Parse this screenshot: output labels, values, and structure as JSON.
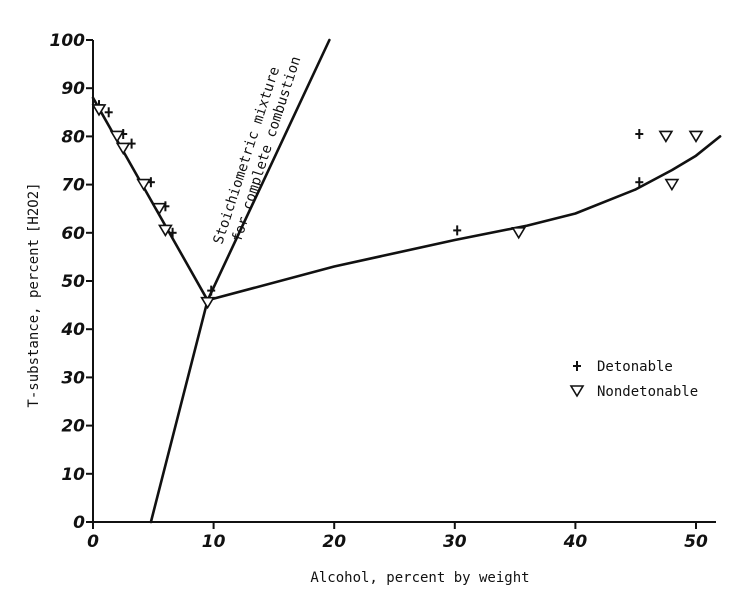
{
  "chart_data": {
    "type": "scatter",
    "xlabel": "Alcohol, percent by weight",
    "ylabel": "T-substance, percent",
    "ylabel_bracket": "H2O2",
    "xlim": [
      0,
      52
    ],
    "ylim": [
      0,
      100
    ],
    "x_ticks": [
      0,
      10,
      20,
      30,
      40,
      50
    ],
    "y_ticks": [
      0,
      10,
      20,
      30,
      40,
      50,
      60,
      70,
      80,
      90,
      100
    ],
    "annotation_line1": "Stoichiometric mixture",
    "annotation_line2": "for complete combustion",
    "legend": [
      {
        "label": "Detonable",
        "marker": "plus"
      },
      {
        "label": "Nondetonable",
        "marker": "triangle-down"
      }
    ],
    "series": [
      {
        "name": "Detonable",
        "marker": "plus",
        "points": [
          [
            0.5,
            86.5
          ],
          [
            1.3,
            85
          ],
          [
            2.5,
            80.5
          ],
          [
            3.2,
            78.5
          ],
          [
            4.8,
            70.5
          ],
          [
            6.0,
            65.5
          ],
          [
            6.6,
            60
          ],
          [
            9.8,
            48
          ],
          [
            30.2,
            60.5
          ],
          [
            45.3,
            80.5
          ],
          [
            45.3,
            70.5
          ]
        ]
      },
      {
        "name": "Nondetonable",
        "marker": "triangle-down",
        "points": [
          [
            0.5,
            85.5
          ],
          [
            2.0,
            80
          ],
          [
            2.5,
            77.5
          ],
          [
            4.2,
            70
          ],
          [
            5.5,
            65
          ],
          [
            6.0,
            60.5
          ],
          [
            9.5,
            45.5
          ],
          [
            35.3,
            60
          ],
          [
            47.5,
            80
          ],
          [
            50.0,
            80
          ],
          [
            48.0,
            70
          ]
        ]
      }
    ],
    "curves": [
      {
        "name": "left-boundary",
        "points": [
          [
            0,
            88
          ],
          [
            9.5,
            46
          ]
        ]
      },
      {
        "name": "stoichiometric",
        "points": [
          [
            4.8,
            0
          ],
          [
            9.5,
            46
          ],
          [
            19.6,
            100
          ]
        ]
      },
      {
        "name": "right-boundary",
        "points": [
          [
            9.5,
            46
          ],
          [
            20,
            53
          ],
          [
            30,
            58.5
          ],
          [
            36,
            61.5
          ],
          [
            40,
            64
          ],
          [
            45,
            69
          ],
          [
            48,
            73
          ],
          [
            50,
            76
          ],
          [
            52,
            80
          ]
        ]
      }
    ]
  }
}
